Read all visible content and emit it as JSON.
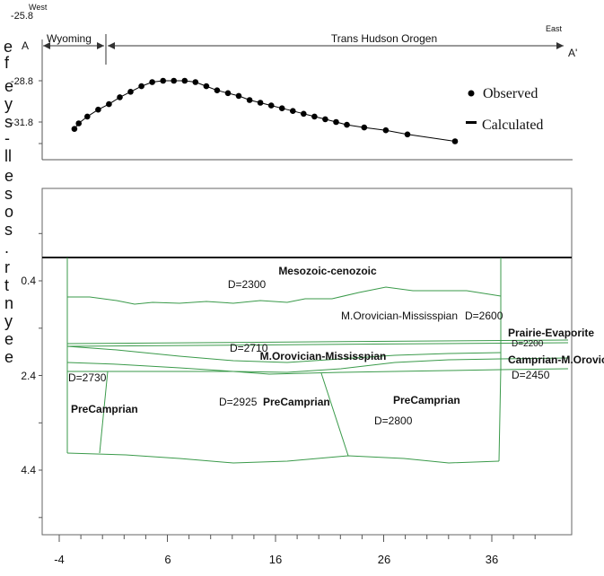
{
  "profile": {
    "west_label": "West",
    "east_label": "East",
    "a_label": "A",
    "a_prime_label": "A'",
    "region_wyoming": "Wyoming",
    "region_tho": "Trans Hudson Orogen",
    "y_ticks": [
      "-25.8",
      "-28.8",
      "-31.8"
    ],
    "legend": {
      "observed": "Observed",
      "calculated": "Calculated"
    }
  },
  "chart_data": {
    "type": "scatter",
    "x": [
      -2.6,
      -2.2,
      -1.4,
      -0.4,
      0.6,
      1.6,
      2.6,
      3.6,
      4.6,
      5.6,
      6.6,
      7.6,
      8.6,
      9.6,
      10.6,
      11.6,
      12.6,
      13.6,
      14.6,
      15.6,
      16.6,
      17.6,
      18.6,
      19.6,
      20.6,
      21.6,
      22.6,
      24.2,
      26.2,
      28.2,
      32.6
    ],
    "observed": [
      -32.3,
      -31.9,
      -31.4,
      -30.9,
      -30.5,
      -30.0,
      -29.6,
      -29.2,
      -28.9,
      -28.8,
      -28.8,
      -28.8,
      -28.9,
      -29.2,
      -29.5,
      -29.7,
      -29.9,
      -30.2,
      -30.4,
      -30.6,
      -30.8,
      -31.0,
      -31.2,
      -31.4,
      -31.6,
      -31.8,
      -32.0,
      -32.2,
      -32.4,
      -32.7,
      -33.2
    ],
    "y_ticks": [
      -25.8,
      -28.8,
      -31.8
    ]
  },
  "model": {
    "x_ticks": [
      "-4",
      "6",
      "16",
      "26",
      "36"
    ],
    "x_tick_values": [
      -4,
      6,
      16,
      26,
      36
    ],
    "depth_ticks": [
      "0.4",
      "2.4",
      "4.4"
    ],
    "depth_tick_values": [
      0.4,
      2.4,
      4.4
    ],
    "layers": {
      "meso_name": "Mesozoic-cenozoic",
      "meso_density": "D=2300",
      "mor_miss_label": "M.Orovician-Mississpian",
      "mor_miss_density": "D=2600",
      "prairie_name": "Prairie-Evaporite",
      "prairie_density": "D=2200",
      "d2710": "D=2710",
      "mor_miss_name2": "M.Orovician-Mississpian",
      "camp_name": "Camprian-M.Orovician",
      "camp_density": "D=2450",
      "d2730": "D=2730",
      "precamb_left": "PreCamprian",
      "d2925": "D=2925",
      "precamb_mid": "PreCamprian",
      "precamb_right": "PreCamprian",
      "d2800": "D=2800"
    }
  },
  "background_text": {
    "right_side_letters": [
      "e",
      "f",
      "e",
      "y",
      "s",
      "-",
      "ll",
      "e",
      "s",
      "o",
      "s",
      ".",
      "r",
      "t",
      "n",
      "y",
      "e",
      "e"
    ]
  },
  "colors": {
    "layer_line": "#3a9a4a",
    "axis": "#333333",
    "frame": "#555555",
    "dots": "#000000"
  }
}
